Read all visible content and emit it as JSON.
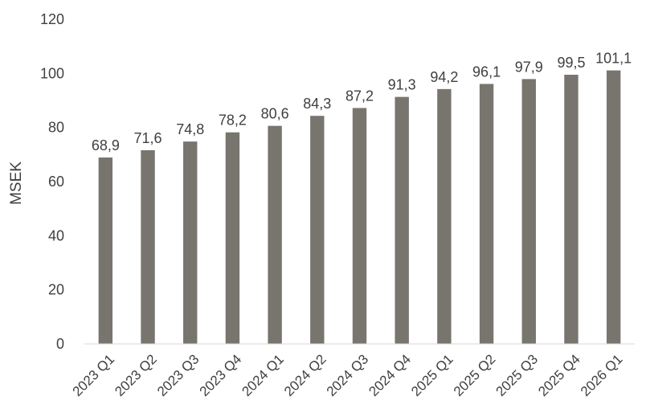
{
  "chart_data": {
    "type": "bar",
    "categories": [
      "2023 Q1",
      "2023 Q2",
      "2023 Q3",
      "2023 Q4",
      "2024 Q1",
      "2024 Q2",
      "2024 Q3",
      "2024 Q4",
      "2025 Q1",
      "2025 Q2",
      "2025 Q3",
      "2025 Q4",
      "2026 Q1"
    ],
    "values": [
      68.9,
      71.6,
      74.8,
      78.2,
      80.6,
      84.3,
      87.2,
      91.3,
      94.2,
      96.1,
      97.9,
      99.5,
      101.1
    ],
    "data_labels": [
      "68,9",
      "71,6",
      "74,8",
      "78,2",
      "80,6",
      "84,3",
      "87,2",
      "91,3",
      "94,2",
      "96,1",
      "97,9",
      "99,5",
      "101,1"
    ],
    "title": "",
    "xlabel": "",
    "ylabel": "MSEK",
    "ylim": [
      0,
      120
    ],
    "yticks": [
      0,
      20,
      40,
      60,
      80,
      100,
      120
    ],
    "grid": false,
    "legend": "none",
    "colors": {
      "bar": "#78756f",
      "axis": "#d9d9d9",
      "text": "#404040"
    }
  }
}
